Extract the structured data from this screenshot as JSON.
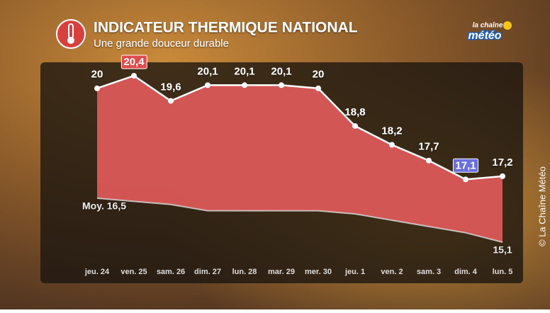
{
  "chart_data": {
    "type": "line",
    "title": "INDICATEUR THERMIQUE NATIONAL",
    "subtitle": "Une grande douceur durable",
    "categories": [
      "jeu. 24",
      "ven. 25",
      "sam. 26",
      "dim. 27",
      "lun. 28",
      "mar. 29",
      "mer. 30",
      "jeu. 1",
      "ven. 2",
      "sam. 3",
      "dim. 4",
      "lun. 5"
    ],
    "series": [
      {
        "color": "#ffffff",
        "values": [
          20,
          20.4,
          19.6,
          20.1,
          20.1,
          20.1,
          20,
          18.8,
          18.2,
          17.7,
          17.1,
          17.2
        ],
        "value_labels": [
          "20",
          "20,4",
          "19,6",
          "20,1",
          "20,1",
          "20,1",
          "20",
          "18,8",
          "18,2",
          "17,7",
          "17,1",
          "17,2"
        ]
      },
      {
        "color": "#d9d9d9",
        "values": [
          16.5,
          16.4,
          16.3,
          16.1,
          16.1,
          16.1,
          16.1,
          16.0,
          15.8,
          15.6,
          15.4,
          15.1
        ],
        "value_labels": [
          "Moy. 16,5",
          null,
          null,
          null,
          null,
          null,
          null,
          null,
          null,
          null,
          null,
          "15,1"
        ]
      }
    ],
    "fill_color": "#e05a5a",
    "max_label_color": "#e04b4b",
    "min_label_color": "#6a6fe0"
  },
  "logo": {
    "line1": "la chaîne",
    "line2": "météo"
  },
  "copyright": "© La Chaîne Météo"
}
